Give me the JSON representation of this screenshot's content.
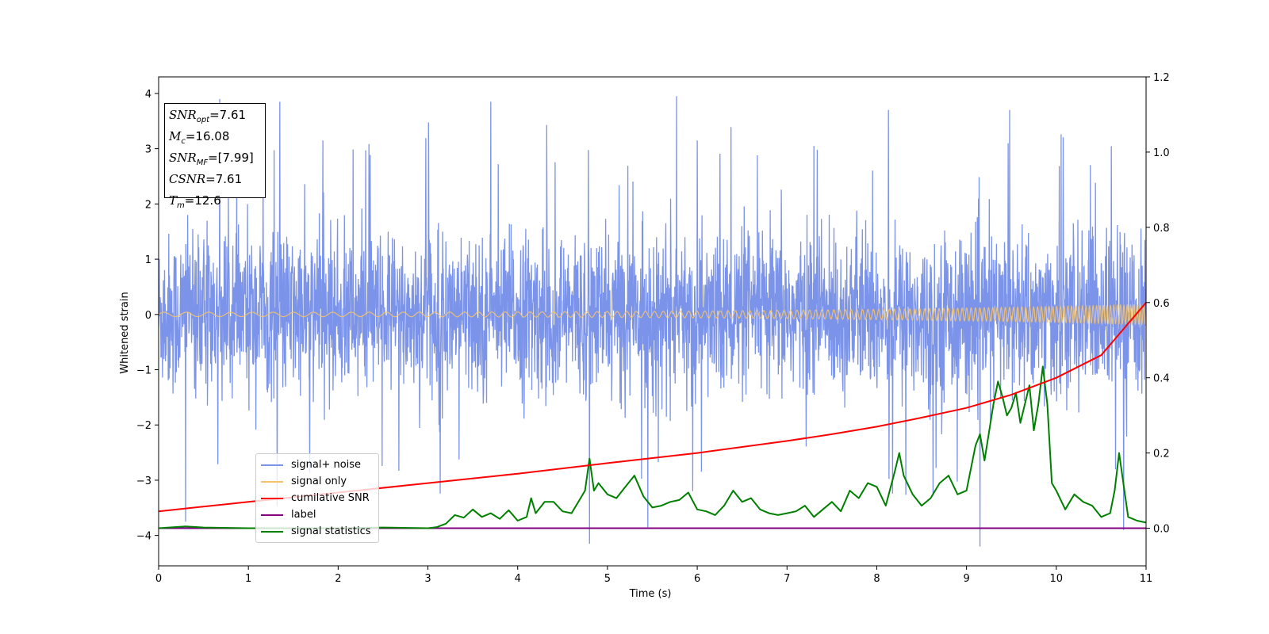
{
  "chart_data": {
    "type": "line",
    "title": "",
    "xlabel": "Time (s)",
    "ylabel": "Whitened strain",
    "xlim": [
      0,
      11
    ],
    "ylim": [
      -4.55,
      4.3
    ],
    "y2lim": [
      -0.1,
      1.2
    ],
    "xticks": [
      "0",
      "1",
      "2",
      "3",
      "4",
      "5",
      "6",
      "7",
      "8",
      "9",
      "10",
      "11"
    ],
    "yticks": [
      "4",
      "3",
      "2",
      "1",
      "0",
      "−1",
      "−2",
      "−3",
      "−4"
    ],
    "y2ticks": [
      "1.2",
      "1.0",
      "0.8",
      "0.6",
      "0.4",
      "0.2",
      "0.0"
    ],
    "legend_position": "lower-left",
    "series": [
      {
        "name": "signal+ noise",
        "axis": "left",
        "color": "#7b93e8",
        "description_values": {
          "typical_range": [
            -2.0,
            2.6
          ],
          "spikes": [
            {
              "x": 0.68,
              "y": 3.9
            },
            {
              "x": 1.35,
              "y": 3.85
            },
            {
              "x": 3.7,
              "y": 3.85
            },
            {
              "x": 5.77,
              "y": 3.95
            },
            {
              "x": 8.13,
              "y": 3.7
            },
            {
              "x": 9.48,
              "y": 3.7
            },
            {
              "x": 0.3,
              "y": -3.75
            },
            {
              "x": 4.8,
              "y": -4.15
            },
            {
              "x": 9.15,
              "y": -4.2
            },
            {
              "x": 5.45,
              "y": -3.85
            },
            {
              "x": 10.75,
              "y": -3.9
            }
          ]
        }
      },
      {
        "name": "signal only",
        "axis": "left",
        "color": "#f5c36b",
        "amplitude_start": 0.04,
        "amplitude_end": 0.18,
        "freq_start": 4,
        "freq_end": 28
      },
      {
        "name": "cumilative SNR",
        "axis": "right",
        "color": "#ff0000",
        "x": [
          0,
          1,
          2,
          3,
          4,
          5,
          6,
          7,
          7.5,
          8,
          8.5,
          9,
          9.5,
          10,
          10.5,
          11
        ],
        "values": [
          0.045,
          0.07,
          0.095,
          0.12,
          0.145,
          0.173,
          0.2,
          0.232,
          0.25,
          0.27,
          0.294,
          0.32,
          0.355,
          0.4,
          0.46,
          0.6
        ]
      },
      {
        "name": "label",
        "axis": "right",
        "color": "#800080",
        "x": [
          0,
          11
        ],
        "values": [
          0,
          0
        ]
      },
      {
        "name": "signal statistics",
        "axis": "right",
        "color": "#008000",
        "x": [
          0,
          0.3,
          0.5,
          1,
          2,
          2.5,
          3,
          3.1,
          3.2,
          3.3,
          3.4,
          3.5,
          3.6,
          3.7,
          3.8,
          3.9,
          4.0,
          4.1,
          4.15,
          4.2,
          4.3,
          4.4,
          4.5,
          4.6,
          4.7,
          4.75,
          4.8,
          4.85,
          4.9,
          5.0,
          5.1,
          5.2,
          5.3,
          5.4,
          5.5,
          5.6,
          5.7,
          5.8,
          5.9,
          6.0,
          6.1,
          6.2,
          6.3,
          6.4,
          6.5,
          6.6,
          6.7,
          6.8,
          6.9,
          7.0,
          7.1,
          7.2,
          7.3,
          7.4,
          7.5,
          7.6,
          7.7,
          7.8,
          7.9,
          8.0,
          8.1,
          8.2,
          8.25,
          8.3,
          8.4,
          8.5,
          8.6,
          8.7,
          8.8,
          8.9,
          9.0,
          9.1,
          9.15,
          9.2,
          9.3,
          9.35,
          9.4,
          9.45,
          9.5,
          9.55,
          9.6,
          9.65,
          9.7,
          9.75,
          9.8,
          9.85,
          9.9,
          9.95,
          10.0,
          10.1,
          10.2,
          10.3,
          10.4,
          10.5,
          10.6,
          10.65,
          10.7,
          10.8,
          10.9,
          11
        ],
        "values": [
          0.0,
          0.005,
          0.002,
          0.0,
          0.0,
          0.002,
          0.0,
          0.003,
          0.012,
          0.035,
          0.028,
          0.05,
          0.03,
          0.04,
          0.025,
          0.048,
          0.02,
          0.03,
          0.08,
          0.04,
          0.07,
          0.07,
          0.045,
          0.04,
          0.08,
          0.1,
          0.185,
          0.1,
          0.12,
          0.09,
          0.08,
          0.11,
          0.14,
          0.085,
          0.055,
          0.06,
          0.07,
          0.075,
          0.095,
          0.05,
          0.045,
          0.035,
          0.06,
          0.1,
          0.07,
          0.08,
          0.05,
          0.04,
          0.035,
          0.04,
          0.045,
          0.06,
          0.03,
          0.05,
          0.07,
          0.045,
          0.1,
          0.08,
          0.12,
          0.11,
          0.06,
          0.15,
          0.2,
          0.14,
          0.09,
          0.06,
          0.08,
          0.12,
          0.14,
          0.09,
          0.1,
          0.22,
          0.25,
          0.18,
          0.33,
          0.39,
          0.35,
          0.3,
          0.32,
          0.36,
          0.28,
          0.33,
          0.38,
          0.26,
          0.33,
          0.43,
          0.33,
          0.12,
          0.1,
          0.05,
          0.09,
          0.07,
          0.06,
          0.03,
          0.04,
          0.1,
          0.2,
          0.03,
          0.02,
          0.015
        ]
      }
    ]
  },
  "infobox": {
    "lines": [
      {
        "sym": "SNR",
        "sub": "opt",
        "value": "=7.61"
      },
      {
        "sym": "M",
        "sub": "c",
        "value": "=16.08"
      },
      {
        "sym": "SNR",
        "sub": "MF",
        "value": "=[7.99]"
      },
      {
        "sym": "CSNR",
        "sub": "",
        "value": "=7.61"
      },
      {
        "sym": "T",
        "sub": "m",
        "value": "=12.6"
      }
    ]
  }
}
